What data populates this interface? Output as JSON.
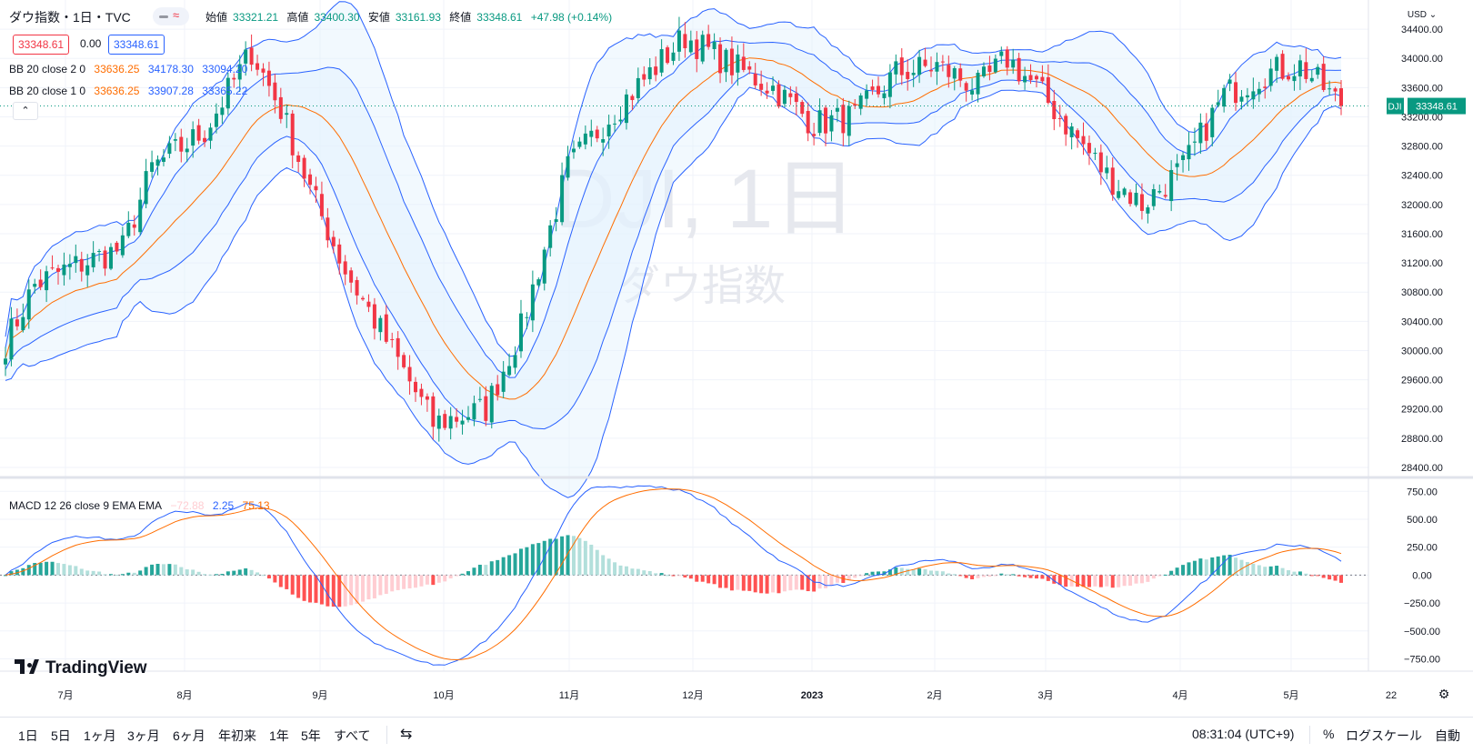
{
  "header": {
    "symbol_title": "ダウ指数・1日・TVC",
    "ohlc": [
      {
        "label": "始値",
        "value": "33321.21"
      },
      {
        "label": "高値",
        "value": "33400.30"
      },
      {
        "label": "安値",
        "value": "33161.93"
      },
      {
        "label": "終値",
        "value": "33348.61"
      }
    ],
    "change": "+47.98 (+0.14%)",
    "sell_price": "33348.61",
    "spread": "0.00",
    "buy_price": "33348.61"
  },
  "indicators": {
    "bb2": {
      "label": "BB 20 close 2 0",
      "basis": "33636.25",
      "upper": "34178.30",
      "lower": "33094.20"
    },
    "bb1": {
      "label": "BB 20 close 1 0",
      "basis": "33636.25",
      "upper": "33907.28",
      "lower": "33365.22"
    },
    "macd": {
      "label": "MACD 12 26 close 9 EMA EMA",
      "hist": "−72.88",
      "macd": "2.25",
      "signal": "75.13"
    },
    "collapse_icon": "chevron-up-icon"
  },
  "watermark": {
    "symbol": "DJI, 1日",
    "name": "ダウ指数"
  },
  "price_axis": {
    "currency": "USD",
    "symbol_tag": "DJI",
    "last_price": "33348.61"
  },
  "chart_data": [
    {
      "type": "candlestick",
      "title": "ダウ指数・1日・TVC",
      "ylim": [
        28300,
        34800
      ],
      "y_ticks": [
        "34400.00",
        "34000.00",
        "33600.00",
        "33200.00",
        "32800.00",
        "32400.00",
        "32000.00",
        "31600.00",
        "31200.00",
        "30800.00",
        "30400.00",
        "30000.00",
        "29600.00",
        "29200.00",
        "28800.00",
        "28400.00"
      ],
      "x_ticks": [
        "7月",
        "8月",
        "9月",
        "10月",
        "11月",
        "12月",
        "2023",
        "2月",
        "3月",
        "4月",
        "5月",
        "22"
      ],
      "close_keypoints": [
        [
          0,
          30100
        ],
        [
          5,
          30900
        ],
        [
          10,
          31100
        ],
        [
          20,
          31400
        ],
        [
          25,
          32500
        ],
        [
          34,
          33000
        ],
        [
          42,
          34100
        ],
        [
          47,
          33300
        ],
        [
          52,
          32200
        ],
        [
          58,
          31100
        ],
        [
          66,
          30000
        ],
        [
          73,
          29000
        ],
        [
          82,
          29200
        ],
        [
          88,
          30300
        ],
        [
          96,
          32500
        ],
        [
          103,
          33200
        ],
        [
          110,
          33800
        ],
        [
          116,
          34300
        ],
        [
          124,
          33900
        ],
        [
          131,
          33600
        ],
        [
          138,
          33100
        ],
        [
          145,
          33200
        ],
        [
          152,
          33800
        ],
        [
          159,
          33900
        ],
        [
          166,
          33600
        ],
        [
          171,
          34000
        ],
        [
          176,
          33600
        ],
        [
          181,
          33100
        ],
        [
          188,
          32400
        ],
        [
          194,
          32000
        ],
        [
          201,
          32500
        ],
        [
          208,
          33500
        ],
        [
          215,
          33800
        ],
        [
          221,
          33900
        ],
        [
          225,
          33600
        ],
        [
          228,
          33348.61
        ]
      ],
      "bollinger": {
        "period": 20,
        "multipliers": [
          1,
          2
        ]
      }
    },
    {
      "type": "line",
      "title": "MACD 12 26 close 9 EMA EMA",
      "ylim": [
        -860,
        850
      ],
      "y_ticks": [
        "750.00",
        "500.00",
        "250.00",
        "0.00",
        "−250.00",
        "−500.00",
        "−750.00"
      ],
      "series": [
        {
          "name": "MACD",
          "color": "#2962ff"
        },
        {
          "name": "Signal",
          "color": "#ff6d00"
        },
        {
          "name": "Histogram",
          "colors": [
            "#26a69a",
            "#b2dfdb",
            "#ff5252",
            "#ffcdd2"
          ]
        }
      ]
    }
  ],
  "colors": {
    "up": "#089981",
    "down": "#f23645",
    "bb_line": "#2962ff",
    "basis": "#ff6d00",
    "band_fill": "#e3f2fd"
  },
  "bottom_bar": {
    "timeframes": [
      "1日",
      "5日",
      "1ヶ月",
      "3ヶ月",
      "6ヶ月",
      "年初来",
      "1年",
      "5年",
      "すべて"
    ],
    "goto_icon": "calendar-goto-icon",
    "clock": "08:31:04 (UTC+9)",
    "percent": "%",
    "log": "ログスケール",
    "auto": "自動"
  },
  "logo": "TradingView"
}
